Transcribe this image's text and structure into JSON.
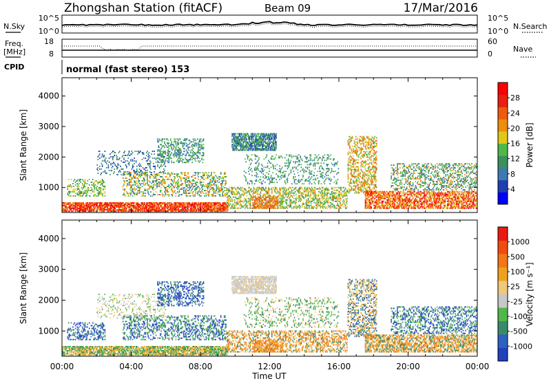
{
  "header": {
    "station": "Zhongshan Station (fitACF)",
    "beam": "Beam 09",
    "date": "17/Mar/2016"
  },
  "noise_panel": {
    "left_label": "N.Sky",
    "right_label": "N.Search",
    "left_ticks": [
      "10^5",
      "10^0"
    ],
    "right_ticks": [
      "10^5",
      "10^0"
    ]
  },
  "freq_panel": {
    "left_label_line1": "Freq.",
    "left_label_line2": "[MHz]",
    "right_label": "Nave",
    "left_ticks": [
      "18",
      "8"
    ],
    "right_ticks": [
      "60",
      "0"
    ]
  },
  "cpid": {
    "label": "CPID",
    "mode": "normal (fast stereo) 153"
  },
  "chart_data": [
    {
      "type": "heatmap",
      "panel": "power",
      "ylabel": "Slant Range [km]",
      "yticks": [
        1000,
        2000,
        3000,
        4000
      ],
      "ylim": [
        180,
        4600
      ],
      "xlim": [
        0,
        24
      ],
      "colorbar": {
        "label": "Power [dB]",
        "ticks": [
          "28",
          "24",
          "20",
          "16",
          "12",
          "8",
          "4"
        ],
        "colors": [
          "#0000ff",
          "#1f3fb0",
          "#3d7ab0",
          "#3d8f5c",
          "#4fb848",
          "#e0c81a",
          "#f08c10",
          "#ee5a10",
          "#e82010",
          "#ff0000"
        ]
      }
    },
    {
      "type": "heatmap",
      "panel": "velocity",
      "ylabel": "Slant Range [km]",
      "yticks": [
        1000,
        2000,
        3000,
        4000
      ],
      "ylim": [
        180,
        4600
      ],
      "xlim": [
        0,
        24
      ],
      "colorbar": {
        "label": "Velocity [m s⁻¹]",
        "ticks": [
          "1000",
          "500",
          "100",
          "25",
          "-25",
          "-100",
          "-500",
          "-1000"
        ],
        "colors": [
          "#2040c0",
          "#3060c0",
          "#3a8a6a",
          "#4fb848",
          "#c8c8c8",
          "#f0c878",
          "#f0a020",
          "#f07818",
          "#f04c10",
          "#e81c10"
        ]
      }
    }
  ],
  "xaxis": {
    "ticks": [
      "00:00",
      "04:00",
      "08:00",
      "12:00",
      "16:00",
      "20:00",
      "00:00"
    ],
    "label": "Time UT"
  }
}
